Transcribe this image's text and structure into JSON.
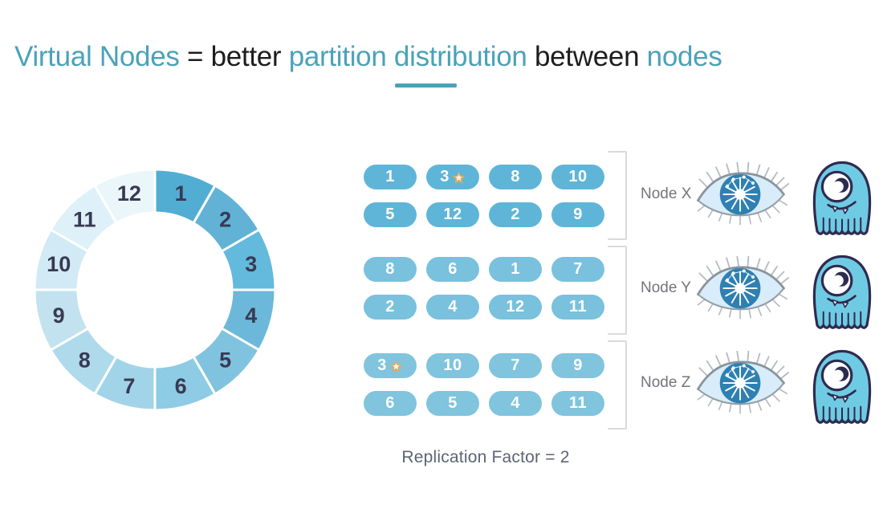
{
  "palette": {
    "teal": "#4aa2b8",
    "dark": "#1d1d1f",
    "ring_label": "#393953",
    "pill_text": "#ffffff",
    "bracket": "#dadada",
    "node_label": "#74747b",
    "caption": "#5c6474",
    "monster_body": "#6fcbe3",
    "monster_outline": "#2e2b50",
    "eye_iris": "#2f80b2",
    "eye_sclera": "#d8edf9",
    "star_gold": "#d9ad66"
  },
  "title": {
    "segments": [
      {
        "text": "Virtual Nodes ",
        "tone": "teal"
      },
      {
        "text": "= better ",
        "tone": "dark"
      },
      {
        "text": "partition distribution ",
        "tone": "teal"
      },
      {
        "text": "between ",
        "tone": "dark"
      },
      {
        "text": "nodes",
        "tone": "teal"
      }
    ]
  },
  "ring": {
    "description": "token ring with 12 vnode segments, clockwise from top",
    "segments": [
      {
        "label": "1",
        "color": "#52add3"
      },
      {
        "label": "2",
        "color": "#61b2d5"
      },
      {
        "label": "3",
        "color": "#63badd"
      },
      {
        "label": "4",
        "color": "#6cb8da"
      },
      {
        "label": "5",
        "color": "#80c3df"
      },
      {
        "label": "6",
        "color": "#8ecbe4"
      },
      {
        "label": "7",
        "color": "#a2d4e9"
      },
      {
        "label": "8",
        "color": "#afdaec"
      },
      {
        "label": "9",
        "color": "#c2e2f0"
      },
      {
        "label": "10",
        "color": "#d1eaf5"
      },
      {
        "label": "11",
        "color": "#def0f8"
      },
      {
        "label": "12",
        "color": "#ebf6fb"
      }
    ]
  },
  "token_groups": [
    {
      "node": "Node X",
      "pill_color": "#5fb5d8",
      "rows": [
        [
          {
            "n": "1"
          },
          {
            "n": "3",
            "star": true
          },
          {
            "n": "8"
          },
          {
            "n": "10"
          }
        ],
        [
          {
            "n": "5"
          },
          {
            "n": "12"
          },
          {
            "n": "2"
          },
          {
            "n": "9"
          }
        ]
      ]
    },
    {
      "node": "Node Y",
      "pill_color": "#79c1dd",
      "rows": [
        [
          {
            "n": "8"
          },
          {
            "n": "6"
          },
          {
            "n": "1"
          },
          {
            "n": "7"
          }
        ],
        [
          {
            "n": "2"
          },
          {
            "n": "4"
          },
          {
            "n": "12"
          },
          {
            "n": "11"
          }
        ]
      ]
    },
    {
      "node": "Node Z",
      "pill_color": "#80c4de",
      "rows": [
        [
          {
            "n": "3",
            "star": true
          },
          {
            "n": "10"
          },
          {
            "n": "7"
          },
          {
            "n": "9"
          }
        ],
        [
          {
            "n": "6"
          },
          {
            "n": "5"
          },
          {
            "n": "4"
          },
          {
            "n": "11"
          }
        ]
      ]
    }
  ],
  "caption": "Replication Factor = 2"
}
